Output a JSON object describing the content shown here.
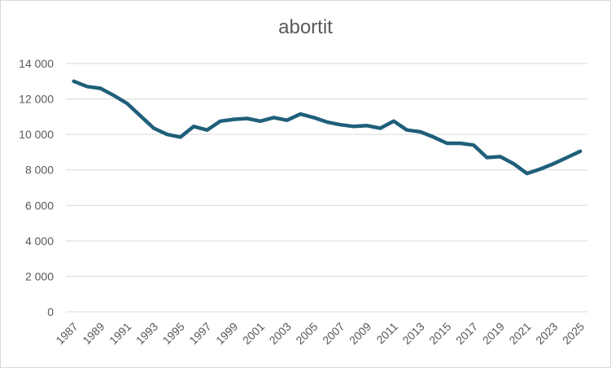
{
  "chart_data": {
    "type": "line",
    "title": "abortit",
    "xlabel": "",
    "ylabel": "",
    "ylim": [
      0,
      14000
    ],
    "grid": true,
    "legend": "none",
    "line_color": "#1f5f7a",
    "y_ticks": [
      "0",
      "2 000",
      "4 000",
      "6 000",
      "8 000",
      "10 000",
      "12 000",
      "14 000"
    ],
    "x_tick_labels": [
      "1987",
      "1989",
      "1991",
      "1993",
      "1995",
      "1997",
      "1999",
      "2001",
      "2003",
      "2005",
      "2007",
      "2009",
      "2011",
      "2013",
      "2015",
      "2017",
      "2019",
      "2021",
      "2023",
      "2025"
    ],
    "x": [
      1987,
      1988,
      1989,
      1990,
      1991,
      1992,
      1993,
      1994,
      1995,
      1996,
      1997,
      1998,
      1999,
      2000,
      2001,
      2002,
      2003,
      2004,
      2005,
      2006,
      2007,
      2008,
      2009,
      2010,
      2011,
      2012,
      2013,
      2014,
      2015,
      2016,
      2017,
      2018,
      2019,
      2020,
      2021,
      2022,
      2023,
      2024,
      2025
    ],
    "series": [
      {
        "values": [
          13000,
          12700,
          12600,
          12200,
          11750,
          11050,
          10350,
          10000,
          9850,
          10450,
          10250,
          10750,
          10850,
          10900,
          10750,
          10950,
          10800,
          11150,
          10950,
          10700,
          10550,
          10450,
          10500,
          10350,
          10750,
          10250,
          10150,
          9850,
          9500,
          9500,
          9400,
          8700,
          8750,
          8350,
          7800,
          8050,
          8350,
          8700,
          9050
        ]
      }
    ]
  }
}
